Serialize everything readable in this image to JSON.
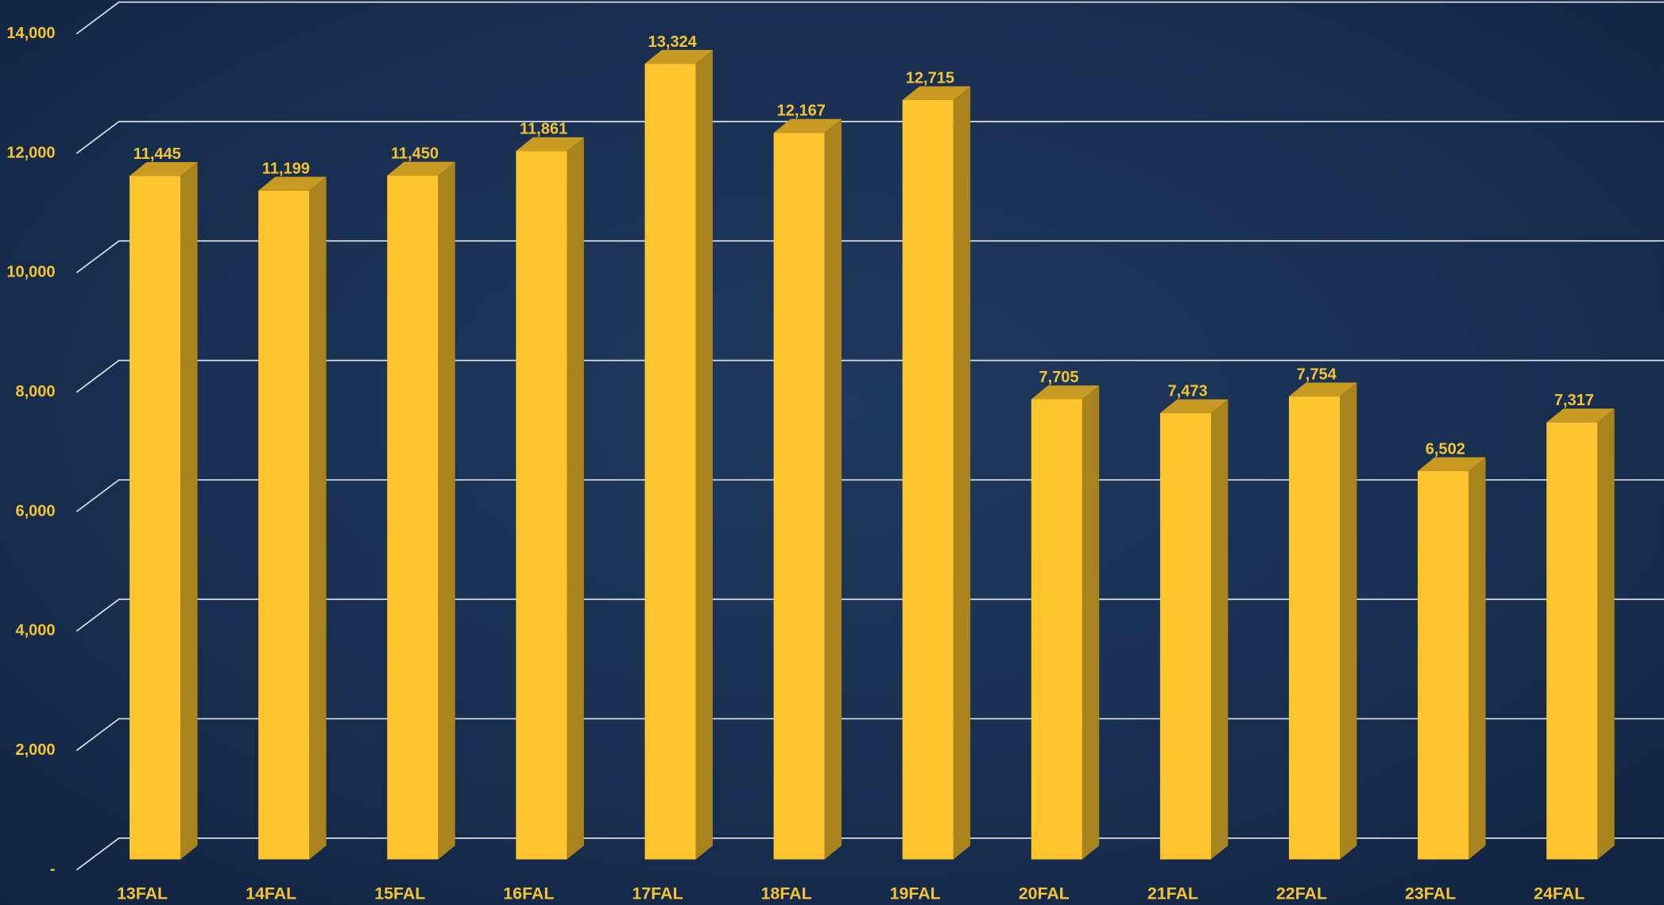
{
  "chart_data": {
    "type": "bar3d",
    "categories": [
      "13FAL",
      "14FAL",
      "15FAL",
      "16FAL",
      "17FAL",
      "18FAL",
      "19FAL",
      "20FAL",
      "21FAL",
      "22FAL",
      "23FAL",
      "24FAL"
    ],
    "values": [
      11445,
      11199,
      11450,
      11861,
      13324,
      12167,
      12715,
      7705,
      7473,
      7754,
      6502,
      7317
    ],
    "value_labels": [
      "11,445",
      "11,199",
      "11,450",
      "11,861",
      "13,324",
      "12,167",
      "12,715",
      "7,705",
      "7,473",
      "7,754",
      "6,502",
      "7,317"
    ],
    "color": "#fec52e",
    "ylim": [
      0,
      14000
    ],
    "yticks": [
      {
        "value": 0,
        "label": "-"
      },
      {
        "value": 2000,
        "label": "2,000"
      },
      {
        "value": 4000,
        "label": "4,000"
      },
      {
        "value": 6000,
        "label": "6,000"
      },
      {
        "value": 8000,
        "label": "8,000"
      },
      {
        "value": 10000,
        "label": "10,000"
      },
      {
        "value": 12000,
        "label": "12,000"
      },
      {
        "value": 14000,
        "label": "14,000"
      }
    ],
    "grid": true
  }
}
